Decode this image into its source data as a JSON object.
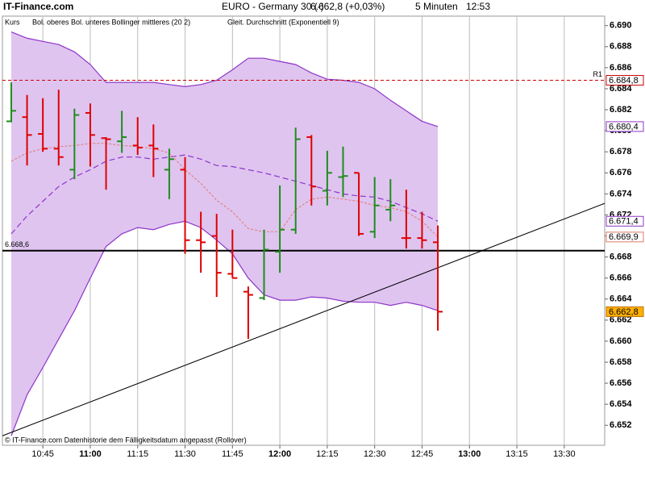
{
  "chart_data": {
    "type": "ohlc",
    "site": "IT-Finance.com",
    "title": "EURO - Germany 30 (-)",
    "quote": "6.662,8 (+0,03%)",
    "interval": "5 Minuten",
    "time": "12:53",
    "footer": "© IT-Finance.com  Datenhistorie dem Fälligkeitsdatum angepasst (Rollover)",
    "x": [
      635,
      640,
      645,
      650,
      655,
      660,
      665,
      670,
      675,
      680,
      685,
      690,
      695,
      700,
      705,
      710,
      715,
      720,
      725,
      730,
      735,
      740,
      745,
      750,
      755,
      760,
      765,
      770
    ],
    "xlim": [
      632.2,
      822.8
    ],
    "xticks": [
      {
        "value": 645,
        "label": "10:45"
      },
      {
        "value": 660,
        "label": "11:00"
      },
      {
        "value": 675,
        "label": "11:15"
      },
      {
        "value": 690,
        "label": "11:30"
      },
      {
        "value": 705,
        "label": "11:45"
      },
      {
        "value": 720,
        "label": "12:00"
      },
      {
        "value": 735,
        "label": "12:15"
      },
      {
        "value": 750,
        "label": "12:30"
      },
      {
        "value": 765,
        "label": "12:45"
      },
      {
        "value": 780,
        "label": "13:00"
      },
      {
        "value": 795,
        "label": "13:15"
      },
      {
        "value": 810,
        "label": "13:30"
      }
    ],
    "ylim": [
      6650.1,
      6690.9
    ],
    "yticks": [
      {
        "value": 6652,
        "label": "6.652"
      },
      {
        "value": 6654,
        "label": "6.654"
      },
      {
        "value": 6656,
        "label": "6.656"
      },
      {
        "value": 6658,
        "label": "6.658"
      },
      {
        "value": 6660,
        "label": "6.660"
      },
      {
        "value": 6662,
        "label": "6.662"
      },
      {
        "value": 6664,
        "label": "6.664"
      },
      {
        "value": 6666,
        "label": "6.666"
      },
      {
        "value": 6668,
        "label": "6.668"
      },
      {
        "value": 6670,
        "label": "6.670"
      },
      {
        "value": 6672,
        "label": "6.672"
      },
      {
        "value": 6674,
        "label": "6.674"
      },
      {
        "value": 6676,
        "label": "6.676"
      },
      {
        "value": 6678,
        "label": "6.678"
      },
      {
        "value": 6680,
        "label": "6.680"
      },
      {
        "value": 6682,
        "label": "6.682"
      },
      {
        "value": 6684,
        "label": "6.684"
      },
      {
        "value": 6686,
        "label": "6.686"
      },
      {
        "value": 6688,
        "label": "6.688"
      },
      {
        "value": 6690,
        "label": "6.690"
      }
    ],
    "grid": true,
    "ohlc": {
      "name": "Kurs",
      "up_color": "#1e8c1e",
      "down_color": "#e00000",
      "open": [
        6680.9,
        6681.3,
        6679.7,
        6678.3,
        6676.3,
        6681.7,
        6679.3,
        6679.0,
        6678.6,
        6678.6,
        6676.3,
        6676.3,
        6669.6,
        6670.0,
        6666.4,
        6664.7,
        6664.1,
        6668.5,
        6670.6,
        6679.4,
        6674.3,
        6675.6,
        6676.0,
        6670.4,
        6672.5,
        6669.8,
        6669.8,
        6669.4
      ],
      "high": [
        6684.6,
        6683.4,
        6683.1,
        6683.9,
        6682.1,
        6682.6,
        6679.4,
        6681.9,
        6681.3,
        6680.6,
        6678.3,
        6677.5,
        6672.3,
        6672.1,
        6670.6,
        6665.2,
        6670.6,
        6674.8,
        6680.3,
        6679.6,
        6678.1,
        6678.5,
        6676.0,
        6675.6,
        6675.4,
        6674.4,
        6672.3,
        6671.0
      ],
      "low": [
        6680.8,
        6676.7,
        6678.0,
        6676.7,
        6675.4,
        6676.6,
        6674.4,
        6677.9,
        6677.7,
        6675.6,
        6673.5,
        6668.3,
        6666.5,
        6664.2,
        6666.0,
        6660.2,
        6663.9,
        6666.5,
        6670.2,
        6672.9,
        6672.9,
        6673.7,
        6670.0,
        6669.8,
        6671.4,
        6668.8,
        6668.8,
        6661.0
      ],
      "close": [
        6681.9,
        6679.6,
        6678.3,
        6677.5,
        6681.5,
        6679.6,
        6679.2,
        6679.4,
        6678.4,
        6678.3,
        6677.3,
        6669.6,
        6669.4,
        6666.5,
        6666.0,
        6664.4,
        6668.7,
        6670.6,
        6679.2,
        6674.7,
        6676.0,
        6675.7,
        6670.2,
        6672.9,
        6672.9,
        6669.8,
        6669.6,
        6662.8
      ]
    },
    "bands": {
      "name": "Bol. oberes Bol. unteres Bollinger mittleres (20 2)",
      "color": "#8e35c8",
      "fill": "#dfc4f0",
      "upper": [
        6689.4,
        6688.8,
        6688.5,
        6688.2,
        6687.5,
        6686.3,
        6684.6,
        6684.6,
        6684.6,
        6684.6,
        6684.4,
        6684.2,
        6684.4,
        6684.8,
        6685.8,
        6686.9,
        6686.9,
        6686.6,
        6686.3,
        6685.5,
        6684.9,
        6684.8,
        6684.6,
        6684.0,
        6682.9,
        6681.9,
        6680.9,
        6680.4
      ],
      "lower": [
        6651.0,
        6654.9,
        6657.5,
        6660.2,
        6662.9,
        6666.0,
        6669.0,
        6670.2,
        6670.8,
        6670.6,
        6671.1,
        6671.4,
        6670.8,
        6669.6,
        6668.3,
        6666.0,
        6664.4,
        6663.9,
        6663.9,
        6664.2,
        6664.1,
        6663.8,
        6663.7,
        6663.7,
        6663.4,
        6663.7,
        6663.4,
        6662.9
      ],
      "middle": [
        6670.2,
        6671.9,
        6673.3,
        6674.7,
        6675.6,
        6676.3,
        6677.1,
        6677.5,
        6677.5,
        6677.3,
        6677.5,
        6677.7,
        6677.3,
        6676.7,
        6676.6,
        6676.3,
        6676.0,
        6675.6,
        6675.2,
        6674.8,
        6674.4,
        6674.0,
        6673.8,
        6673.7,
        6673.3,
        6672.7,
        6672.1,
        6671.4
      ]
    },
    "ema": {
      "name": "Gleit. Durchschnitt (Exponentiell 9)",
      "color": "#e07a6a",
      "values": [
        6677.1,
        6677.9,
        6678.3,
        6678.5,
        6678.6,
        6678.8,
        6678.8,
        6678.6,
        6678.5,
        6678.3,
        6677.9,
        6676.3,
        6675.0,
        6673.4,
        6672.3,
        6670.7,
        6670.4,
        6670.4,
        6672.5,
        6673.5,
        6673.7,
        6673.5,
        6673.3,
        6672.9,
        6672.7,
        6672.3,
        6671.4,
        6669.9
      ]
    },
    "lines": [
      {
        "value": 6684.8,
        "label": "R1",
        "color": "#cc0000",
        "dashed": true,
        "side": "right"
      },
      {
        "value": 6668.6,
        "label": "6.668,6",
        "color": "#000000",
        "dashed": false,
        "side": "left"
      }
    ],
    "trendline": {
      "x": [
        632.2,
        822.8
      ],
      "values": [
        6651.0,
        6673.1
      ],
      "color": "#000000"
    },
    "last_labels": [
      {
        "value": 6684.8,
        "label": "6.684,8",
        "color": "#cc0000",
        "fill": "#ffffff"
      },
      {
        "value": 6680.4,
        "label": "6.680,4",
        "color": "#8e35c8",
        "fill": "#ffffff"
      },
      {
        "value": 6671.4,
        "label": "6.671,4",
        "color": "#8e35c8",
        "fill": "#ffffff"
      },
      {
        "value": 6669.9,
        "label": "6.669,9",
        "color": "#e07a6a",
        "fill": "#ffffff"
      },
      {
        "value": 6662.8,
        "label": "6.662,8",
        "color": "#c07000",
        "fill": "#ffb000"
      }
    ]
  }
}
